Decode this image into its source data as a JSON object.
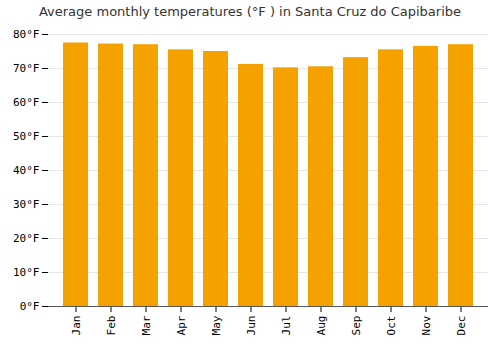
{
  "chart_data": {
    "type": "bar",
    "title": "Average monthly temperatures (°F ) in Santa Cruz do Capibaribe",
    "categories": [
      "Jan",
      "Feb",
      "Mar",
      "Apr",
      "May",
      "Jun",
      "Jul",
      "Aug",
      "Sep",
      "Oct",
      "Nov",
      "Dec"
    ],
    "values": [
      77.5,
      77.2,
      77.0,
      75.5,
      75.0,
      71.2,
      70.2,
      70.5,
      73.2,
      75.5,
      76.5,
      77.0
    ],
    "color": "#F5A200",
    "ylim": [
      0,
      80
    ],
    "yticks": [
      {
        "value": 0,
        "label": "0°F"
      },
      {
        "value": 10,
        "label": "10°F"
      },
      {
        "value": 20,
        "label": "20°F"
      },
      {
        "value": 30,
        "label": "30°F"
      },
      {
        "value": 40,
        "label": "40°F"
      },
      {
        "value": 50,
        "label": "50°F"
      },
      {
        "value": 60,
        "label": "60°F"
      },
      {
        "value": 70,
        "label": "70°F"
      },
      {
        "value": 80,
        "label": "80°F"
      }
    ],
    "grid": true
  }
}
